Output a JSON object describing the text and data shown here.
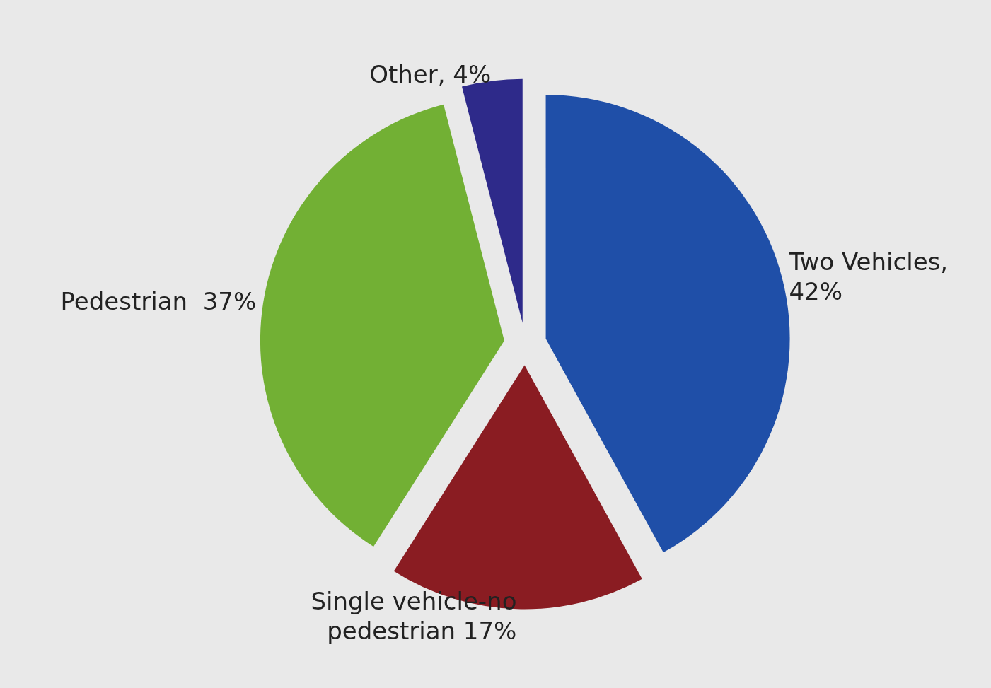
{
  "chart_data": {
    "type": "pie",
    "categories": [
      "Two Vehicles",
      "Single vehicle-no pedestrian",
      "Pedestrian",
      "Other"
    ],
    "values": [
      42,
      17,
      37,
      4
    ],
    "value_labels": [
      ", 42%",
      " 17%",
      "  37%",
      ", 4%"
    ],
    "colors": [
      "#1f4fa8",
      "#8a1c22",
      "#72b034",
      "#2e2a8a"
    ],
    "legend": false
  }
}
